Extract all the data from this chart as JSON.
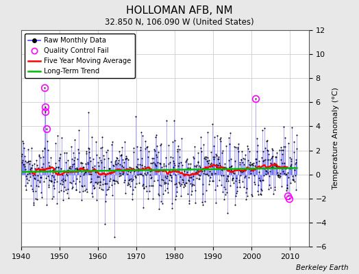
{
  "title": "HOLLOMAN AFB, NM",
  "subtitle": "32.850 N, 106.090 W (United States)",
  "ylabel": "Temperature Anomaly (°C)",
  "watermark": "Berkeley Earth",
  "xlim": [
    1940,
    2015
  ],
  "ylim": [
    -6,
    12
  ],
  "yticks": [
    -6,
    -4,
    -2,
    0,
    2,
    4,
    6,
    8,
    10,
    12
  ],
  "xticks": [
    1940,
    1950,
    1960,
    1970,
    1980,
    1990,
    2000,
    2010
  ],
  "bg_color": "#e8e8e8",
  "plot_bg_color": "#ffffff",
  "grid_color": "#cccccc",
  "raw_line_color": "#4444ff",
  "raw_marker_color": "black",
  "ma_color": "red",
  "trend_color": "#00bb00",
  "qc_fail_color": "magenta",
  "seed": 42,
  "n_months": 864,
  "start_year": 1940.0,
  "end_year": 2012.0
}
